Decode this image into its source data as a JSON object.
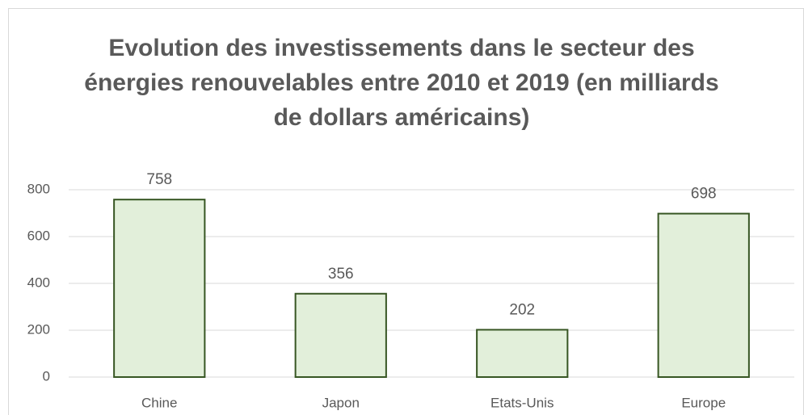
{
  "chart_data": {
    "type": "bar",
    "title": "Evolution des investissements dans le secteur des énergies renouvelables entre 2010 et 2019 (en milliards de dollars américains)",
    "categories": [
      "Chine",
      "Japon",
      "Etats-Unis",
      "Europe"
    ],
    "values": [
      758,
      356,
      202,
      698
    ],
    "color": "#e2efda",
    "edge_color": "#375623",
    "ylim": [
      0,
      800
    ],
    "yticks": [
      0,
      200,
      400,
      600,
      800
    ],
    "grid": true
  }
}
